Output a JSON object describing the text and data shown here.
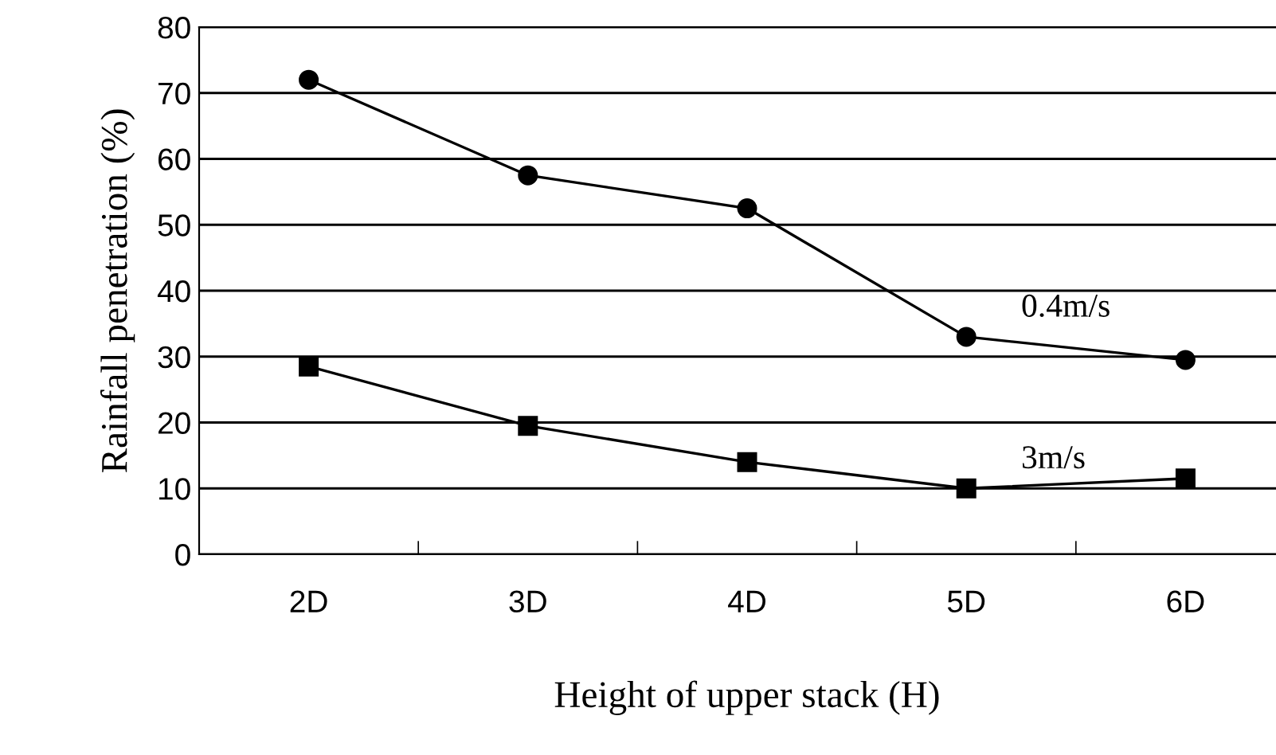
{
  "chart_data": {
    "type": "line",
    "xlabel": "Height of upper stack (H)",
    "ylabel": "Rainfall penetration (%)",
    "categories": [
      "2D",
      "3D",
      "4D",
      "5D",
      "6D"
    ],
    "series": [
      {
        "name": "0.4m/s",
        "color": "#000000",
        "marker": "circle",
        "values": [
          72,
          57.5,
          52.5,
          33,
          29.5
        ]
      },
      {
        "name": "3m/s",
        "color": "#000000",
        "marker": "square",
        "values": [
          28.5,
          19.5,
          14,
          10,
          11.5
        ]
      }
    ],
    "ylim": [
      0,
      80
    ],
    "yticks": [
      0,
      10,
      20,
      30,
      40,
      50,
      60,
      70,
      80
    ],
    "grid": "y",
    "legend": false,
    "line_style": "solid"
  }
}
